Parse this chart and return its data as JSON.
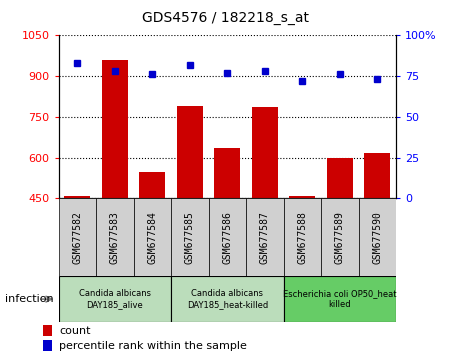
{
  "title": "GDS4576 / 182218_s_at",
  "samples": [
    "GSM677582",
    "GSM677583",
    "GSM677584",
    "GSM677585",
    "GSM677586",
    "GSM677587",
    "GSM677588",
    "GSM677589",
    "GSM677590"
  ],
  "counts": [
    458,
    960,
    545,
    790,
    635,
    785,
    458,
    600,
    615
  ],
  "percentiles": [
    83,
    78,
    76,
    82,
    77,
    78,
    72,
    76,
    73
  ],
  "ylim_left": [
    450,
    1050
  ],
  "ylim_right": [
    0,
    100
  ],
  "yticks_left": [
    450,
    600,
    750,
    900,
    1050
  ],
  "yticks_right": [
    0,
    25,
    50,
    75,
    100
  ],
  "bar_color": "#cc0000",
  "dot_color": "#0000cc",
  "bar_width": 0.7,
  "groups": [
    {
      "label": "Candida albicans\nDAY185_alive",
      "start": 0,
      "end": 3,
      "color": "#bbddbb"
    },
    {
      "label": "Candida albicans\nDAY185_heat-killed",
      "start": 3,
      "end": 6,
      "color": "#bbddbb"
    },
    {
      "label": "Escherichia coli OP50_heat\nkilled",
      "start": 6,
      "end": 9,
      "color": "#66cc66"
    }
  ],
  "factor_label": "infection",
  "legend_count_label": "count",
  "legend_percentile_label": "percentile rank within the sample",
  "tick_bg_color": "#d0d0d0",
  "title_fontsize": 10,
  "label_fontsize": 7,
  "group_fontsize": 6,
  "legend_fontsize": 8
}
